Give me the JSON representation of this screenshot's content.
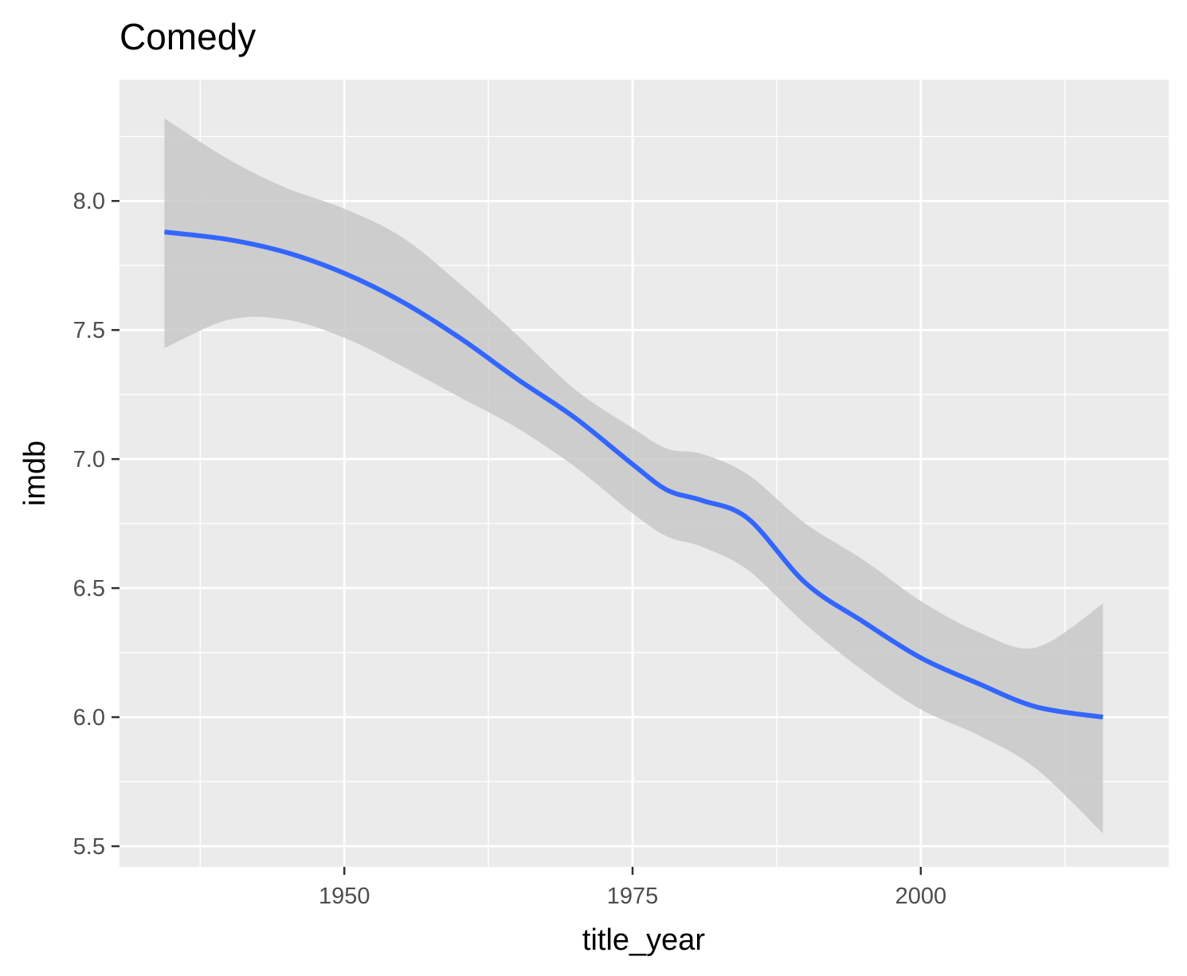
{
  "chart_data": {
    "type": "line",
    "title": "Comedy",
    "xlabel": "title_year",
    "ylabel": "imdb",
    "xlim": [
      1930.5,
      2021.5
    ],
    "ylim": [
      5.42,
      8.47
    ],
    "x_ticks": [
      1950,
      1975,
      2000
    ],
    "x_tick_labels": [
      "1950",
      "1975",
      "2000"
    ],
    "y_ticks": [
      5.5,
      6.0,
      6.5,
      7.0,
      7.5,
      8.0
    ],
    "y_tick_labels": [
      "5.5",
      "6.0",
      "6.5",
      "7.0",
      "7.5",
      "8.0"
    ],
    "grid": true,
    "series": [
      {
        "x": [
          1934.4,
          1940,
          1945,
          1950,
          1955,
          1960,
          1965,
          1970,
          1975,
          1978,
          1981,
          1985,
          1990,
          1995,
          2000,
          2005,
          2010,
          2015.8
        ],
        "y": [
          7.88,
          7.85,
          7.8,
          7.72,
          7.61,
          7.47,
          7.31,
          7.16,
          6.98,
          6.88,
          6.84,
          6.77,
          6.52,
          6.37,
          6.23,
          6.13,
          6.04,
          6.0
        ],
        "ci_upper": [
          8.32,
          8.16,
          8.05,
          7.97,
          7.86,
          7.68,
          7.48,
          7.27,
          7.12,
          7.04,
          7.02,
          6.94,
          6.75,
          6.61,
          6.45,
          6.33,
          6.27,
          6.44
        ],
        "ci_lower": [
          7.43,
          7.54,
          7.54,
          7.47,
          7.36,
          7.24,
          7.12,
          6.97,
          6.79,
          6.7,
          6.66,
          6.57,
          6.36,
          6.18,
          6.03,
          5.93,
          5.8,
          5.55
        ]
      }
    ],
    "colors": {
      "panel": "#ebebeb",
      "grid": "#ffffff",
      "line": "#3366ff",
      "ribbon": "#c8c8c8",
      "tick_text": "#4d4d4d",
      "label_text": "#000000"
    }
  }
}
